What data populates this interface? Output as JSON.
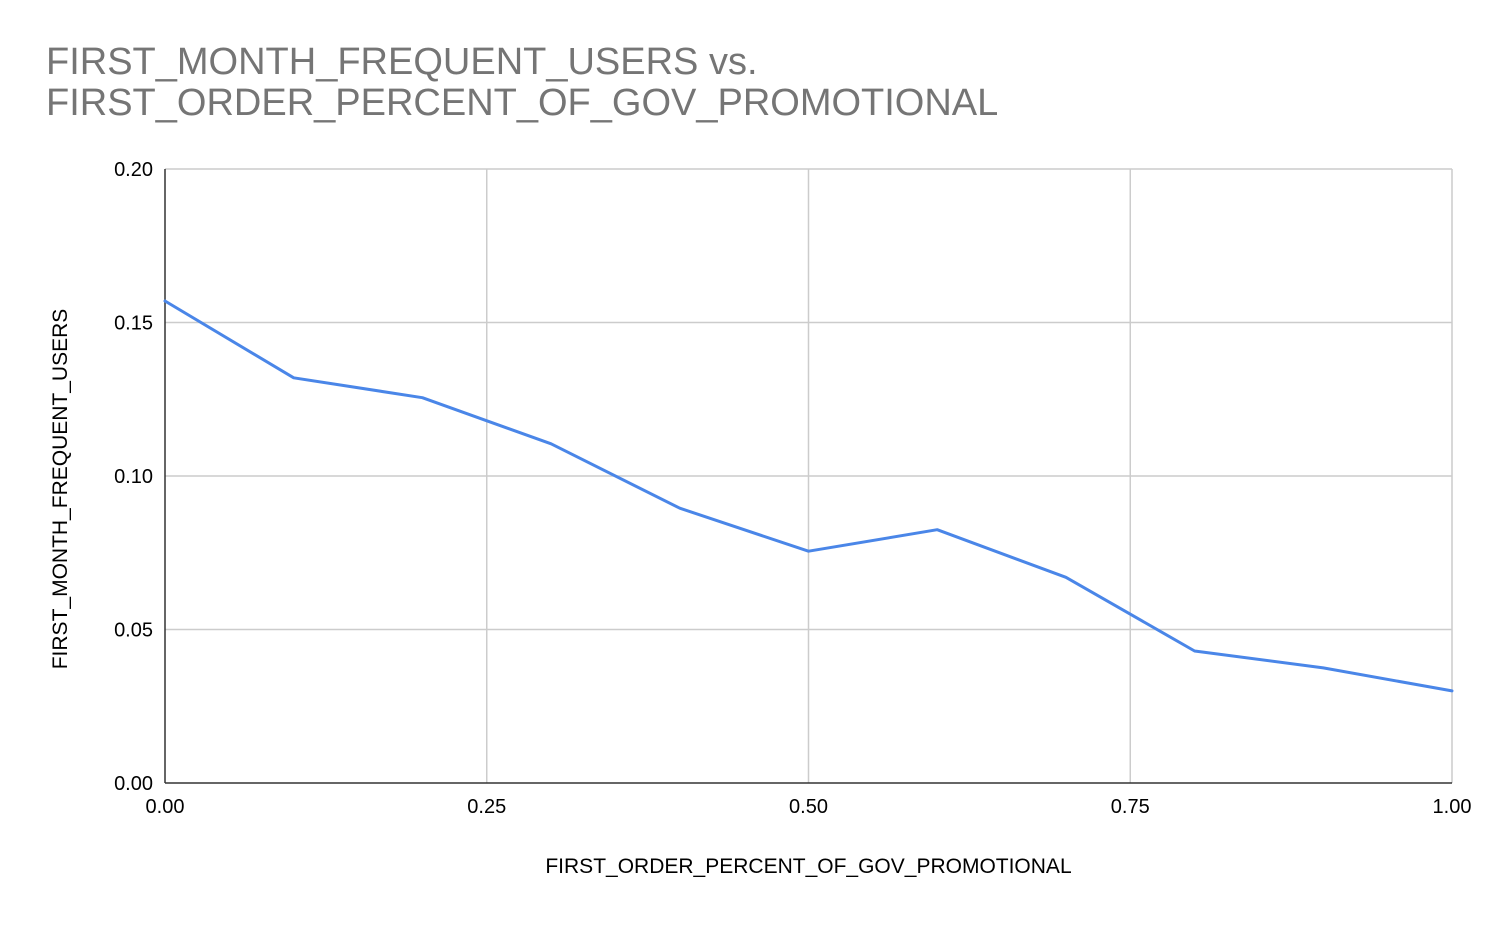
{
  "chart_data": {
    "type": "line",
    "title_lines": [
      "FIRST_MONTH_FREQUENT_USERS vs.",
      "FIRST_ORDER_PERCENT_OF_GOV_PROMOTIONAL"
    ],
    "xlabel": "FIRST_ORDER_PERCENT_OF_GOV_PROMOTIONAL",
    "ylabel": "FIRST_MONTH_FREQUENT_USERS",
    "xlim": [
      0,
      1
    ],
    "ylim": [
      0,
      0.2
    ],
    "x_ticks": [
      0,
      0.25,
      0.5,
      0.75,
      1
    ],
    "x_tick_labels": [
      "0.00",
      "0.25",
      "0.50",
      "0.75",
      "1.00"
    ],
    "y_ticks": [
      0,
      0.05,
      0.1,
      0.15,
      0.2
    ],
    "y_tick_labels": [
      "0.00",
      "0.05",
      "0.10",
      "0.15",
      "0.20"
    ],
    "grid": true,
    "legend": "none",
    "series": [
      {
        "color": "#4a86e8",
        "x": [
          0.0,
          0.1,
          0.2,
          0.3,
          0.4,
          0.5,
          0.6,
          0.7,
          0.8,
          0.9,
          1.0
        ],
        "y": [
          0.157,
          0.132,
          0.1255,
          0.1105,
          0.0895,
          0.0755,
          0.0825,
          0.067,
          0.043,
          0.0375,
          0.03
        ]
      }
    ]
  }
}
